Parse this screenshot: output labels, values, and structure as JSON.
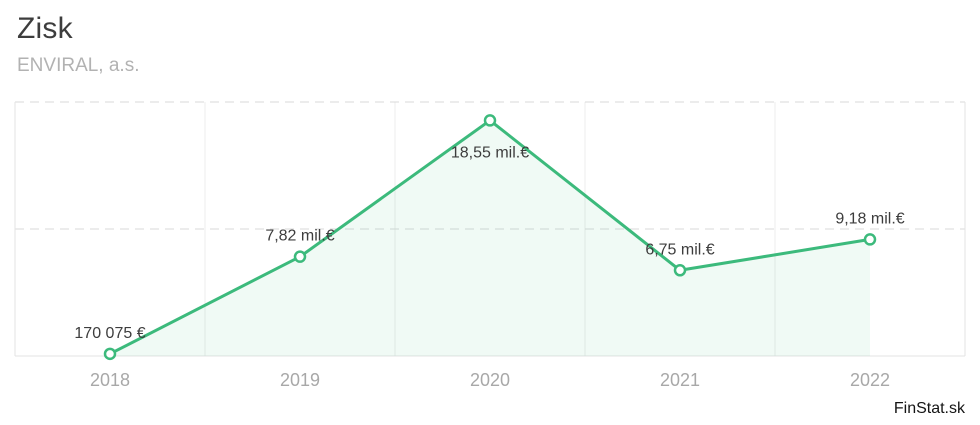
{
  "header": {
    "title": "Zisk",
    "subtitle": "ENVIRAL, a.s."
  },
  "footer": {
    "watermark": "FinStat.sk"
  },
  "chart_data": {
    "type": "area",
    "title": "Zisk",
    "subtitle": "ENVIRAL, a.s.",
    "categories": [
      "2018",
      "2019",
      "2020",
      "2021",
      "2022"
    ],
    "values_mil_eur": [
      0.170075,
      7.82,
      18.55,
      6.75,
      9.18
    ],
    "point_labels": [
      "170 075 €",
      "7,82 mil.€",
      "18,55 mil.€",
      "6,75 mil.€",
      "9,18 mil.€"
    ],
    "label_positions": [
      "above",
      "above",
      "below",
      "above",
      "above"
    ],
    "xlabel": "",
    "ylabel": "",
    "ylim": [
      0,
      20
    ],
    "gridlines_mil_eur": [
      10,
      20
    ],
    "legend_position": "none",
    "grid": "horizontal-dashed-and-vertical-solid",
    "colors": {
      "line": "#3cba7c",
      "marker_fill": "#ffffff",
      "area_fill": "rgba(60,186,124,0.08)",
      "grid_vertical": "#ececec",
      "grid_dashed": "#d9d9d9",
      "border": "#e3e3e3",
      "point_label": "#3d3d3d",
      "axis_label": "#a8a8a8"
    }
  }
}
